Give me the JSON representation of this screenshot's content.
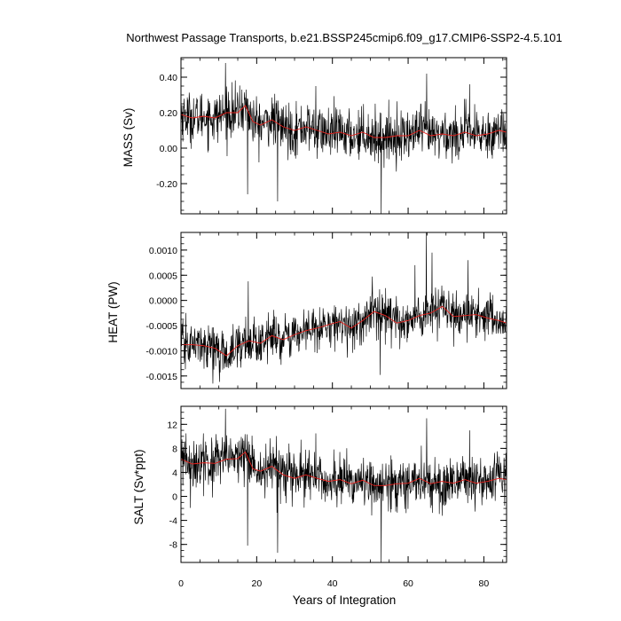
{
  "chart_data": {
    "type": "line",
    "title": "Northwest Passage Transports, b.e21.BSSP245cmip6.f09_g17.CMIP6-SSP2-4.5.101",
    "xlabel": "Years of Integration",
    "xlim": [
      0,
      86
    ],
    "x_ticks": [
      0,
      20,
      40,
      60,
      80
    ],
    "x_tick_labels": [
      "0",
      "20",
      "40",
      "60",
      "80"
    ],
    "series_colors": {
      "monthly": "#000000",
      "smoothed": "#e8201c"
    },
    "panels": [
      {
        "ylabel": "MASS (Sv)",
        "ylim": [
          -0.37,
          0.51
        ],
        "y_ticks": [
          -0.2,
          0.0,
          0.2,
          0.4
        ],
        "y_tick_labels": [
          "-0.20",
          "0.00",
          "0.20",
          "0.40"
        ],
        "n_points": 1032,
        "smooth_x": [
          0,
          3,
          6,
          9,
          12,
          15,
          17,
          19,
          21,
          24,
          27,
          30,
          33,
          36,
          39,
          42,
          45,
          48,
          51,
          54,
          57,
          60,
          63,
          66,
          69,
          72,
          75,
          78,
          81,
          84,
          86
        ],
        "smooth_y": [
          0.19,
          0.17,
          0.18,
          0.17,
          0.2,
          0.2,
          0.24,
          0.15,
          0.13,
          0.16,
          0.12,
          0.1,
          0.12,
          0.1,
          0.08,
          0.09,
          0.07,
          0.09,
          0.06,
          0.06,
          0.07,
          0.07,
          0.1,
          0.07,
          0.08,
          0.07,
          0.09,
          0.07,
          0.08,
          0.1,
          0.09
        ],
        "noise_sd": 0.07,
        "spikes": [
          {
            "x": 11.8,
            "y": 0.48
          },
          {
            "x": 17.6,
            "y": -0.26
          },
          {
            "x": 25.5,
            "y": -0.3
          },
          {
            "x": 52.9,
            "y": -0.37
          },
          {
            "x": 64.9,
            "y": 0.42
          },
          {
            "x": 76.2,
            "y": 0.36
          },
          {
            "x": 35.6,
            "y": 0.35
          }
        ]
      },
      {
        "ylabel": "HEAT (PW)",
        "ylim": [
          -0.00175,
          0.00135
        ],
        "y_ticks": [
          -0.0015,
          -0.001,
          -0.0005,
          0.0,
          0.0005,
          0.001
        ],
        "y_tick_labels": [
          "-0.0015",
          "-0.0010",
          "-0.0005",
          "0.0000",
          "0.0005",
          "0.0010"
        ],
        "n_points": 1032,
        "smooth_x": [
          0,
          3,
          6,
          9,
          12,
          15,
          18,
          21,
          24,
          27,
          30,
          33,
          36,
          39,
          42,
          45,
          48,
          51,
          54,
          57,
          60,
          63,
          66,
          69,
          72,
          75,
          78,
          81,
          84,
          86
        ],
        "smooth_y": [
          -0.00088,
          -0.00088,
          -0.0009,
          -0.00095,
          -0.0011,
          -0.0009,
          -0.0008,
          -0.00085,
          -0.0007,
          -0.00078,
          -0.00068,
          -0.0006,
          -0.00055,
          -0.00048,
          -0.00042,
          -0.00055,
          -0.0004,
          -0.00022,
          -0.0003,
          -0.00045,
          -0.0004,
          -0.0003,
          -0.00025,
          -0.00012,
          -0.00032,
          -0.0003,
          -0.00028,
          -0.00035,
          -0.0004,
          -0.00045
        ],
        "noise_sd": 0.00022,
        "spikes": [
          {
            "x": 17.8,
            "y": 0.00038
          },
          {
            "x": 8.4,
            "y": -0.00165
          },
          {
            "x": 52.6,
            "y": -0.00148
          },
          {
            "x": 61.8,
            "y": 0.0007
          },
          {
            "x": 64.8,
            "y": 0.00135
          },
          {
            "x": 75.8,
            "y": 0.0008
          },
          {
            "x": 66.3,
            "y": 0.00095
          }
        ]
      },
      {
        "ylabel": "SALT (Sv*ppt)",
        "ylim": [
          -11,
          15
        ],
        "y_ticks": [
          -8,
          -4,
          0,
          4,
          8,
          12
        ],
        "y_tick_labels": [
          "-8",
          "-4",
          "0",
          "4",
          "8",
          "12"
        ],
        "n_points": 1032,
        "smooth_x": [
          0,
          3,
          6,
          9,
          12,
          15,
          17,
          19,
          21,
          24,
          27,
          30,
          33,
          36,
          39,
          42,
          45,
          48,
          51,
          54,
          57,
          60,
          63,
          66,
          69,
          72,
          75,
          78,
          81,
          84,
          86
        ],
        "smooth_y": [
          6.2,
          5.4,
          5.6,
          5.5,
          6.2,
          6.3,
          7.4,
          4.6,
          4.2,
          5.0,
          3.6,
          3.0,
          3.6,
          3.0,
          2.5,
          2.8,
          2.1,
          2.7,
          1.8,
          1.8,
          2.1,
          2.2,
          3.0,
          2.1,
          2.5,
          2.2,
          2.8,
          2.2,
          2.5,
          3.0,
          2.8
        ],
        "noise_sd": 2.1,
        "spikes": [
          {
            "x": 11.8,
            "y": 14.6
          },
          {
            "x": 17.6,
            "y": -8.2
          },
          {
            "x": 25.5,
            "y": -9.4
          },
          {
            "x": 52.9,
            "y": -11.0
          },
          {
            "x": 64.9,
            "y": 13.0
          },
          {
            "x": 76.2,
            "y": 11.0
          },
          {
            "x": 35.6,
            "y": 10.5
          }
        ]
      }
    ]
  }
}
